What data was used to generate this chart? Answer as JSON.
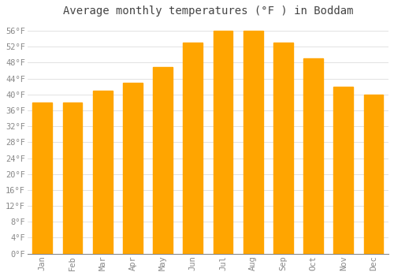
{
  "title": "Average monthly temperatures (°F ) in Boddam",
  "months": [
    "Jan",
    "Feb",
    "Mar",
    "Apr",
    "May",
    "Jun",
    "Jul",
    "Aug",
    "Sep",
    "Oct",
    "Nov",
    "Dec"
  ],
  "values": [
    38,
    38,
    41,
    43,
    47,
    53,
    56,
    56,
    53,
    49,
    42,
    40
  ],
  "bar_color": "#FFA500",
  "bar_color_light": "#FFB733",
  "ylim_max": 58,
  "ytick_step": 4,
  "background_color": "#FFFFFF",
  "grid_color": "#DDDDDD",
  "title_fontsize": 10,
  "tick_fontsize": 7.5,
  "ylabel_color": "#888888",
  "xlabel_color": "#888888",
  "title_color": "#444444",
  "font_family": "monospace",
  "bar_width": 0.65
}
